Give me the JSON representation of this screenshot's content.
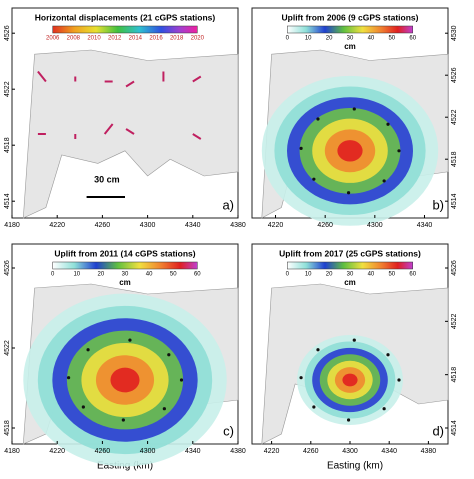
{
  "panels": [
    {
      "title": "Horizontal displacements (21 cGPS stations)",
      "label": "a)",
      "scale_label": "30 cm",
      "colorbar_ticks": [
        "2006",
        "2008",
        "2010",
        "2012",
        "2014",
        "2016",
        "2018",
        "2020"
      ],
      "xticks": [
        "4180",
        "4220",
        "4260",
        "4300",
        "4340",
        "4380"
      ],
      "yticks": [
        "4526",
        "4522",
        "4518",
        "4514"
      ]
    },
    {
      "title": "Uplift from 2006 (9 cGPS stations)",
      "label": "b)",
      "unit": "cm",
      "colorbar_ticks": [
        "0",
        "10",
        "20",
        "30",
        "40",
        "50",
        "60"
      ],
      "xticks": [
        "4220",
        "4260",
        "4300",
        "4340"
      ],
      "yticks": [
        "4530",
        "4526",
        "4522",
        "4518",
        "4514"
      ]
    },
    {
      "title": "Uplift from 2011 (14 cGPS stations)",
      "label": "c)",
      "unit": "cm",
      "colorbar_ticks": [
        "0",
        "10",
        "20",
        "30",
        "40",
        "50",
        "60"
      ],
      "xticks": [
        "4180",
        "4220",
        "4260",
        "4300",
        "4340",
        "4380"
      ],
      "yticks": [
        "4526",
        "4522",
        "4518"
      ]
    },
    {
      "title": "Uplift from 2017 (25 cGPS stations)",
      "label": "d)",
      "unit": "cm",
      "colorbar_ticks": [
        "0",
        "10",
        "20",
        "30",
        "40",
        "50",
        "60"
      ],
      "xticks": [
        "4220",
        "4260",
        "4300",
        "4340",
        "4380"
      ],
      "yticks": [
        "4526",
        "4522",
        "4518",
        "4514"
      ]
    }
  ],
  "x_axis_label": "Easting (km)"
}
